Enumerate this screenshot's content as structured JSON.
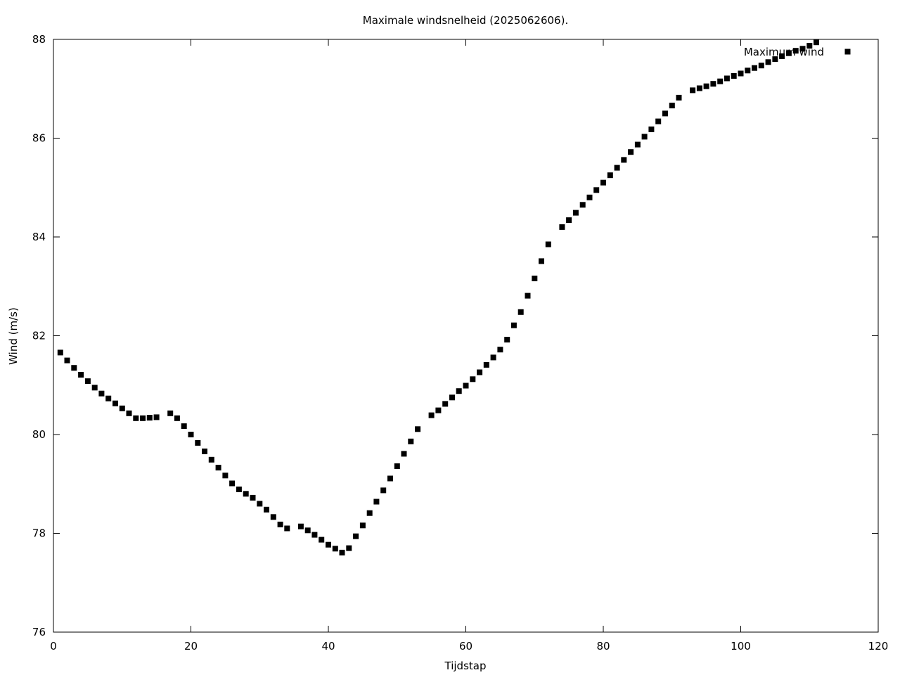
{
  "chart_data": {
    "type": "scatter",
    "title": "Maximale windsnelheid (2025062606).",
    "xlabel": "Tijdstap",
    "ylabel": "Wind (m/s)",
    "xlim": [
      0,
      120
    ],
    "ylim": [
      76,
      88
    ],
    "x_ticks": [
      0,
      20,
      40,
      60,
      80,
      100,
      120
    ],
    "y_ticks": [
      76,
      78,
      80,
      82,
      84,
      86,
      88
    ],
    "x_tick_labels": [
      "0",
      "20",
      "40",
      "60",
      "80",
      "100",
      "120"
    ],
    "y_tick_labels": [
      "76",
      "78",
      "80",
      "82",
      "84",
      "86",
      "88"
    ],
    "grid": false,
    "legend": "top-right",
    "marker_color": "#000000",
    "series": [
      {
        "name": "Maximum wind",
        "x": [
          1,
          2,
          3,
          4,
          5,
          6,
          7,
          8,
          9,
          10,
          11,
          12,
          13,
          14,
          15,
          17,
          18,
          19,
          20,
          21,
          22,
          23,
          24,
          25,
          26,
          27,
          28,
          29,
          30,
          31,
          32,
          33,
          34,
          36,
          37,
          38,
          39,
          40,
          41,
          42,
          43,
          44,
          45,
          46,
          47,
          48,
          49,
          50,
          51,
          52,
          53,
          55,
          56,
          57,
          58,
          59,
          60,
          61,
          62,
          63,
          64,
          65,
          66,
          67,
          68,
          69,
          70,
          71,
          72,
          74,
          75,
          76,
          77,
          78,
          79,
          80,
          81,
          82,
          83,
          84,
          85,
          86,
          87,
          88,
          89,
          90,
          91,
          93,
          94,
          95,
          96,
          97,
          98,
          99,
          100,
          101,
          102,
          103,
          104,
          105,
          106,
          107,
          108,
          109,
          110,
          111
        ],
        "y": [
          81.66,
          81.5,
          81.35,
          81.21,
          81.08,
          80.95,
          80.83,
          80.73,
          80.63,
          80.53,
          80.43,
          80.33,
          80.33,
          80.34,
          80.35,
          80.43,
          80.33,
          80.17,
          80.0,
          79.83,
          79.66,
          79.49,
          79.33,
          79.17,
          79.01,
          78.89,
          78.8,
          78.72,
          78.6,
          78.48,
          78.33,
          78.18,
          78.1,
          78.14,
          78.06,
          77.97,
          77.87,
          77.77,
          77.69,
          77.61,
          77.7,
          77.94,
          78.16,
          78.41,
          78.64,
          78.87,
          79.11,
          79.36,
          79.61,
          79.86,
          80.11,
          80.39,
          80.49,
          80.62,
          80.75,
          80.88,
          80.99,
          81.12,
          81.26,
          81.41,
          81.56,
          81.72,
          81.92,
          82.21,
          82.48,
          82.81,
          83.16,
          83.51,
          83.85,
          84.2,
          84.34,
          84.49,
          84.65,
          84.8,
          84.95,
          85.1,
          85.25,
          85.4,
          85.56,
          85.72,
          85.87,
          86.03,
          86.18,
          86.34,
          86.5,
          86.66,
          86.82,
          86.97,
          87.01,
          87.05,
          87.1,
          87.15,
          87.21,
          87.26,
          87.31,
          87.37,
          87.42,
          87.47,
          87.54,
          87.6,
          87.66,
          87.72,
          87.77,
          87.81,
          87.87,
          87.94
        ]
      }
    ]
  }
}
